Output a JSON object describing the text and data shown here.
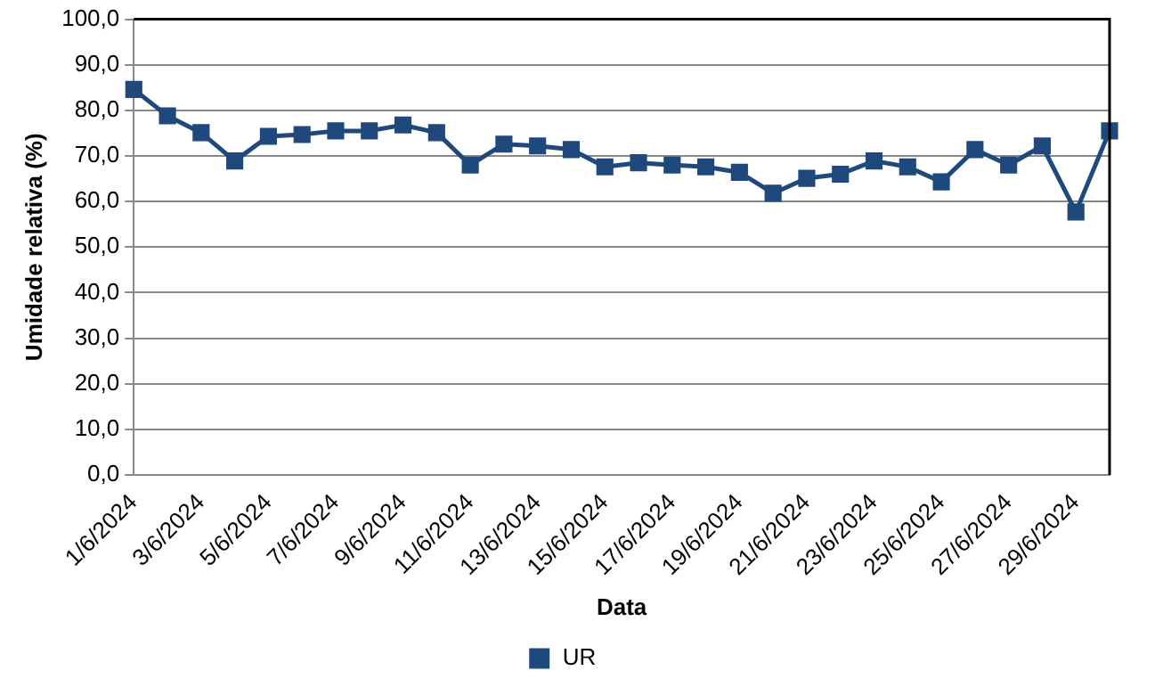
{
  "chart_data": {
    "type": "line",
    "xlabel": "Data",
    "ylabel": "Umidade relativa (%)",
    "categories": [
      "1/6/2024",
      null,
      "3/6/2024",
      null,
      "5/6/2024",
      null,
      "7/6/2024",
      null,
      "9/6/2024",
      null,
      "11/6/2024",
      null,
      "13/6/2024",
      null,
      "15/6/2024",
      null,
      "17/6/2024",
      null,
      "19/6/2024",
      null,
      "21/6/2024",
      null,
      "23/6/2024",
      null,
      "25/6/2024",
      null,
      "27/6/2024",
      null,
      "29/6/2024",
      null
    ],
    "series": [
      {
        "name": "UR",
        "color": "#1f497d",
        "values": [
          84.6,
          78.8,
          75.1,
          68.9,
          74.3,
          74.7,
          75.5,
          75.5,
          76.8,
          75.1,
          68.0,
          72.6,
          72.2,
          71.4,
          67.6,
          68.5,
          68.0,
          67.6,
          66.4,
          61.8,
          65.1,
          66.0,
          68.9,
          67.6,
          64.3,
          71.4,
          68.0,
          72.2,
          57.7,
          75.5
        ]
      }
    ],
    "ylim": [
      0,
      100
    ],
    "yticks": [
      {
        "value": 0,
        "label": "0,0"
      },
      {
        "value": 10,
        "label": "10,0"
      },
      {
        "value": 20,
        "label": "20,0"
      },
      {
        "value": 30,
        "label": "30,0"
      },
      {
        "value": 40,
        "label": "40,0"
      },
      {
        "value": 50,
        "label": "50,0"
      },
      {
        "value": 60,
        "label": "60,0"
      },
      {
        "value": 70,
        "label": "70,0"
      },
      {
        "value": 80,
        "label": "80,0"
      },
      {
        "value": 90,
        "label": "90,0"
      },
      {
        "value": 100,
        "label": "100,0"
      }
    ],
    "grid": "y",
    "legend": "bottom",
    "marker": "square",
    "line_style": "solid"
  }
}
